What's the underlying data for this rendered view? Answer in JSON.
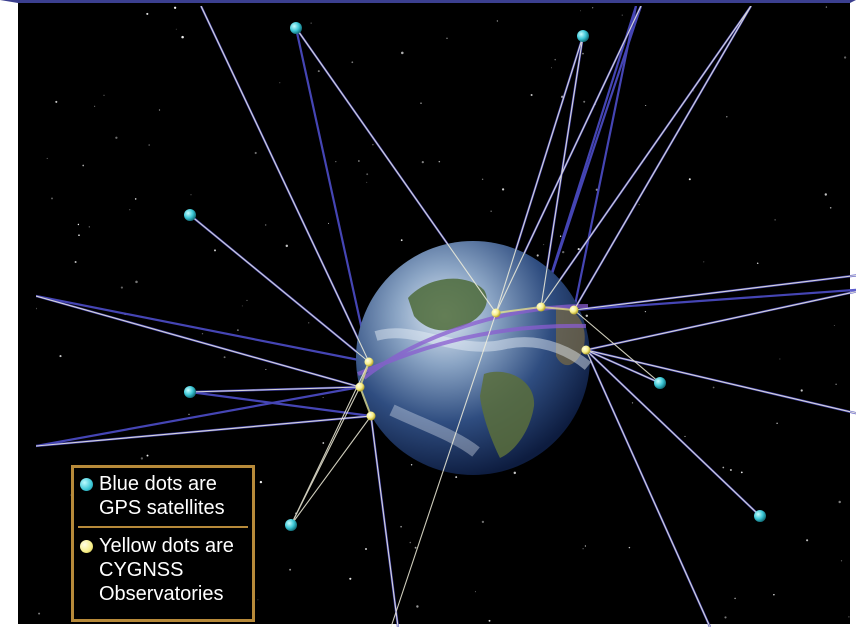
{
  "legend": {
    "blue_line1": "Blue dots are",
    "blue_line2": "GPS satellites",
    "yellow_line1": "Yellow dots are",
    "yellow_line2": "CYGNSS",
    "yellow_line3": "Observatories"
  },
  "colors": {
    "gps_satellite": "#3cc7d6",
    "cygnss_observatory": "#f7ef8a",
    "signal_line_blue": "#4d4dc8",
    "signal_line_white": "#f2f0dc",
    "legend_border": "#b78a3a",
    "frame_top_border": "#3b3f8f"
  }
}
